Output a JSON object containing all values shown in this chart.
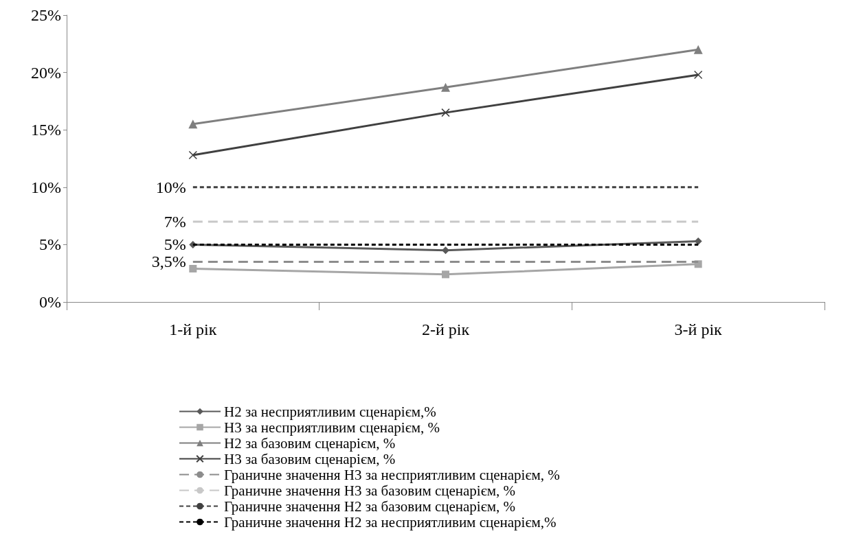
{
  "chart_data": {
    "type": "line",
    "categories": [
      "1-й рік",
      "2-й рік",
      "3-й рік"
    ],
    "series": [
      {
        "name": "Н2 за несприятливим сценарієм,%",
        "color": "#595959",
        "marker": "diamond",
        "line_style": "solid",
        "values": [
          5.0,
          4.5,
          5.3
        ]
      },
      {
        "name": "Н3 за несприятливим сценарієм, %",
        "color": "#a6a6a6",
        "marker": "square",
        "line_style": "solid",
        "values": [
          2.9,
          2.4,
          3.3
        ]
      },
      {
        "name": "Н2 за базовим сценарієм, %",
        "color": "#7f7f7f",
        "marker": "triangle",
        "line_style": "solid",
        "values": [
          15.5,
          18.7,
          22.0
        ]
      },
      {
        "name": "Н3 за базовим сценарієм, %",
        "color": "#404040",
        "marker": "cross",
        "line_style": "solid",
        "values": [
          12.8,
          16.5,
          19.8
        ]
      },
      {
        "name": "Граничне значення Н3 за несприятливим сценарієм, %",
        "color": "#8c8c8c",
        "marker": "none",
        "line_style": "dashed",
        "values": [
          3.5,
          3.5,
          3.5
        ],
        "value_labels": [
          "3,5%",
          null,
          null
        ]
      },
      {
        "name": "Граничне значення Н3 за базовим сценарієм, %",
        "color": "#c8c8c8",
        "marker": "none",
        "line_style": "dashed",
        "values": [
          7,
          7,
          7
        ],
        "value_labels": [
          "7%",
          null,
          null
        ]
      },
      {
        "name": "Граничне значення Н2 за базовим сценарієм, %",
        "color": "#404040",
        "marker": "none",
        "line_style": "dotted",
        "values": [
          10,
          10,
          10
        ],
        "value_labels": [
          "10%",
          null,
          null
        ]
      },
      {
        "name": "Граничне значення Н2 за несприятливим сценарієм,%",
        "color": "#000000",
        "marker": "none",
        "line_style": "dotted",
        "values": [
          5,
          5,
          5
        ],
        "value_labels": [
          "5%",
          null,
          null
        ]
      }
    ],
    "ylim": [
      0,
      25
    ],
    "yticks": [
      {
        "value": 0,
        "label": "0%"
      },
      {
        "value": 5,
        "label": "5%"
      },
      {
        "value": 10,
        "label": "10%"
      },
      {
        "value": 15,
        "label": "15%"
      },
      {
        "value": 20,
        "label": "20%"
      },
      {
        "value": 25,
        "label": "25%"
      }
    ],
    "grid": false,
    "legend": "bottom"
  }
}
